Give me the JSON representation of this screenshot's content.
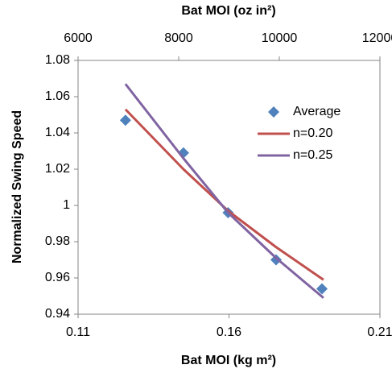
{
  "chart_data": {
    "type": "scatter",
    "x_label": "Bat MOI (kg m²)",
    "x2_label": "Bat MOI (oz in²)",
    "y_label": "Normalized Swing Speed",
    "xlim": [
      0.11,
      0.21
    ],
    "xticks": [
      0.11,
      0.16,
      0.21
    ],
    "x2lim": [
      6000,
      12000
    ],
    "x2ticks": [
      6000,
      8000,
      10000,
      12000
    ],
    "ylim": [
      0.94,
      1.08
    ],
    "yticks": [
      0.94,
      0.96,
      0.98,
      1,
      1.02,
      1.04,
      1.06,
      1.08
    ],
    "legend": "upper right",
    "series": [
      {
        "name": "Average",
        "mode": "markers",
        "color": "#4f81bd",
        "x": [
          0.1257,
          0.1449,
          0.1597,
          0.1756,
          0.1908
        ],
        "values": [
          1.047,
          1.029,
          0.996,
          0.97,
          0.954
        ]
      },
      {
        "name": "n=0.20",
        "mode": "line",
        "color": "#c0504d",
        "x": [
          0.1257,
          0.1449,
          0.1597,
          0.1756,
          0.1913
        ],
        "values": [
          1.053,
          1.02,
          0.997,
          0.977,
          0.959
        ]
      },
      {
        "name": "n=0.25",
        "mode": "line",
        "color": "#8064a2",
        "x": [
          0.1257,
          0.1449,
          0.1597,
          0.1756,
          0.1913
        ],
        "values": [
          1.067,
          1.026,
          0.996,
          0.971,
          0.949
        ]
      }
    ]
  }
}
